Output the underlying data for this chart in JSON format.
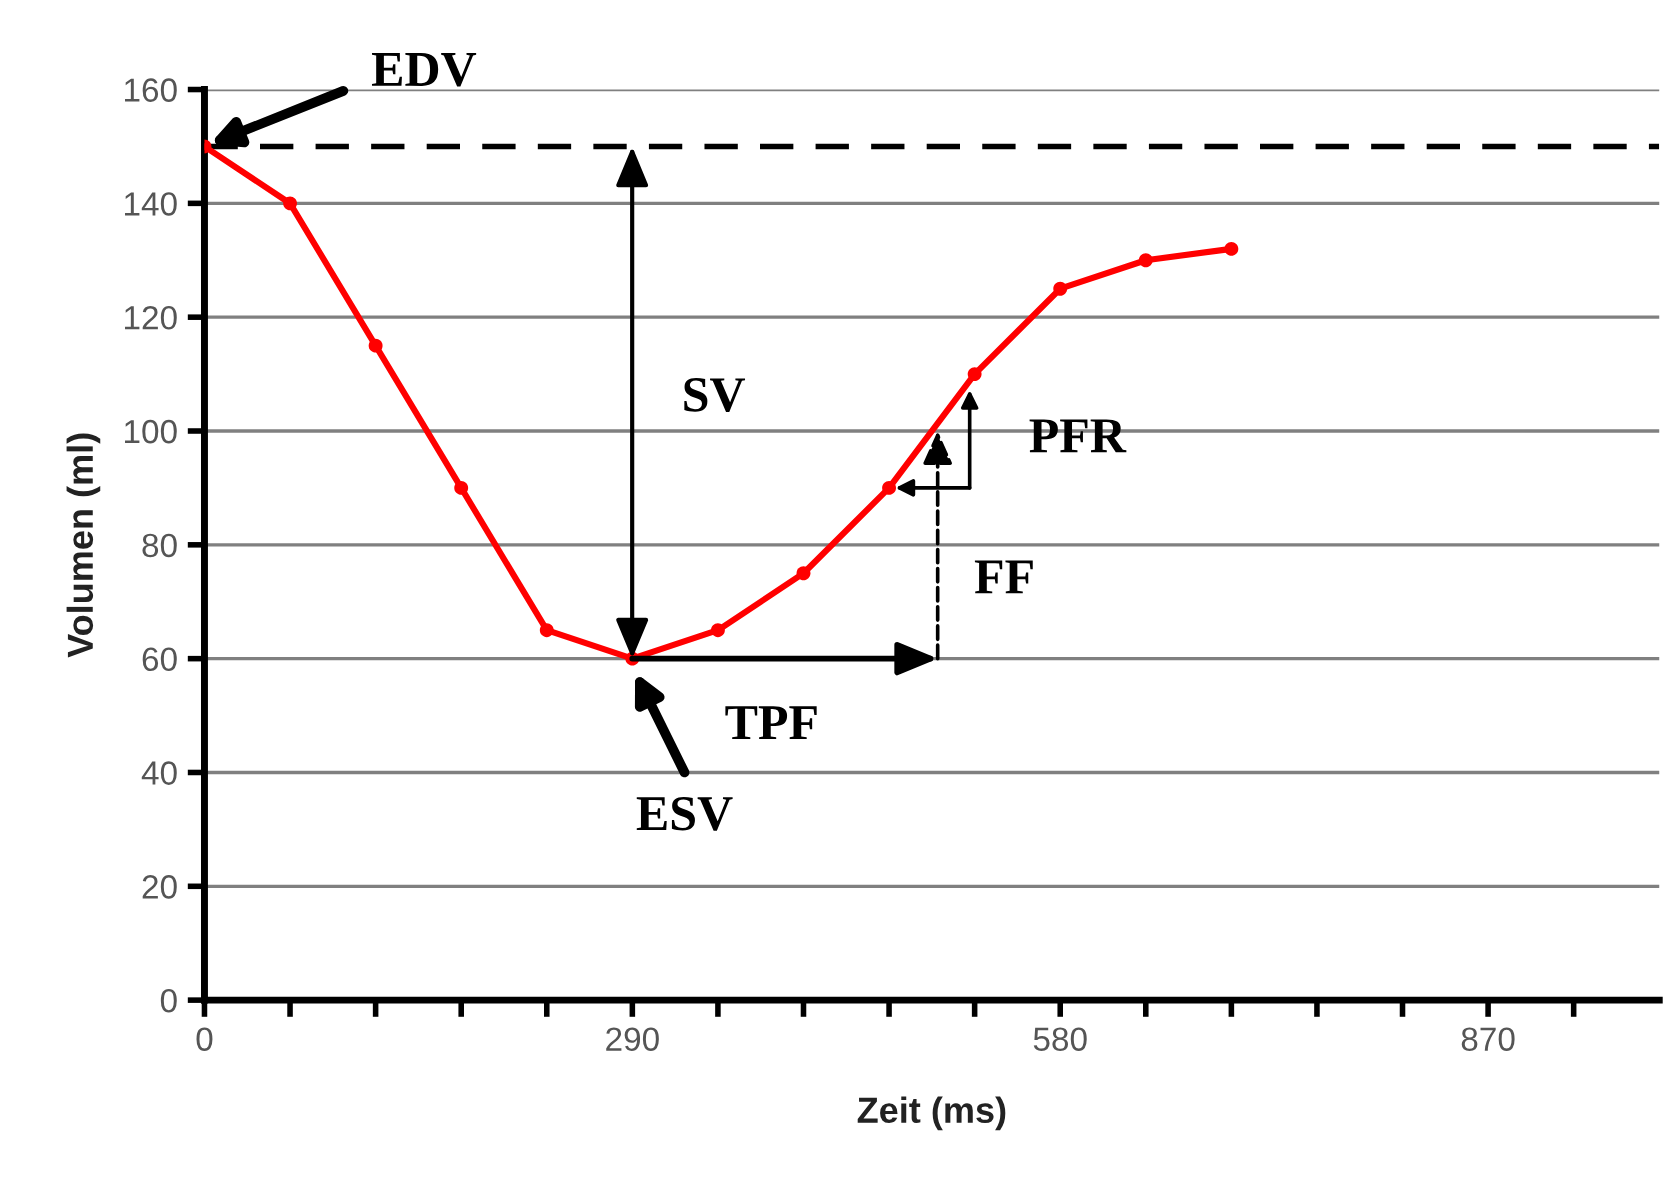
{
  "chart_data": {
    "type": "line",
    "xlabel": "Zeit (ms)",
    "ylabel": "Volumen (ml)",
    "x": [
      0,
      58,
      116,
      174,
      232,
      290,
      348,
      406,
      464,
      522,
      580,
      638,
      696
    ],
    "series": [
      {
        "color": "#ff0000",
        "values": [
          150,
          140,
          115,
          90,
          65,
          60,
          65,
          75,
          90,
          110,
          125,
          130,
          132
        ]
      }
    ],
    "xlim": [
      0,
      986
    ],
    "ylim": [
      0,
      160
    ],
    "xticks": [
      0,
      {
        "value": 58,
        "label": null
      },
      {
        "value": 116,
        "label": null
      },
      {
        "value": 174,
        "label": null
      },
      {
        "value": 232,
        "label": null
      },
      290,
      {
        "value": 348,
        "label": null
      },
      {
        "value": 406,
        "label": null
      },
      {
        "value": 464,
        "label": null
      },
      {
        "value": 522,
        "label": null
      },
      580,
      {
        "value": 638,
        "label": null
      },
      {
        "value": 696,
        "label": null
      },
      {
        "value": 754,
        "label": null
      },
      {
        "value": 812,
        "label": null
      },
      870,
      {
        "value": 928,
        "label": null
      }
    ],
    "yticks": [
      0,
      20,
      40,
      60,
      80,
      100,
      120,
      140,
      160
    ],
    "ref_lines": [
      {
        "axis": "y",
        "value": 150,
        "color": "#000000",
        "line_style": "dashed"
      }
    ],
    "annotations": [
      {
        "text": "EDV",
        "x": 0,
        "y": 150
      },
      "SV",
      "ESV",
      "TPF",
      "FF",
      "PFR"
    ],
    "grid": "y",
    "marker": "circle",
    "line_style": "solid"
  }
}
